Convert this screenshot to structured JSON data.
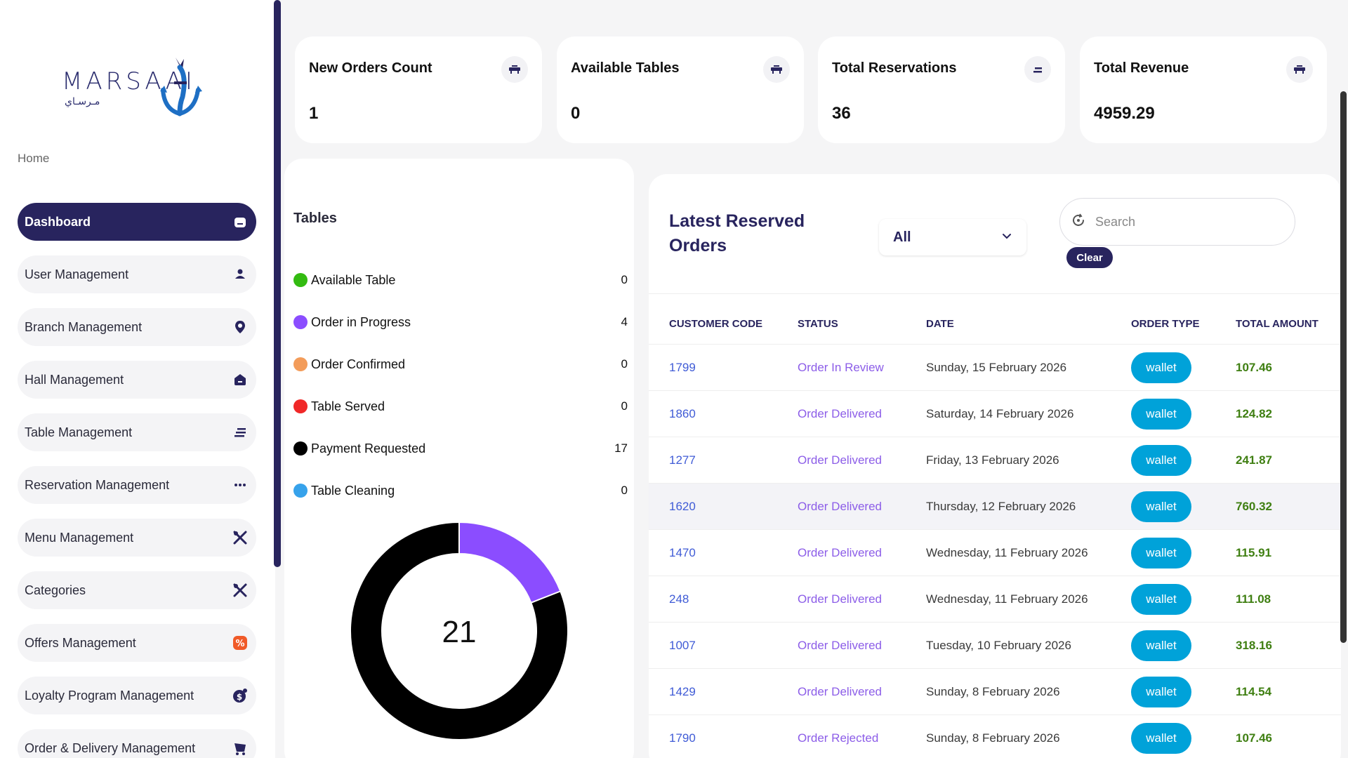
{
  "brand": {
    "name_latin": "MARSAAI",
    "name_arabic": "مـرسـاي",
    "accent": "#28245e"
  },
  "breadcrumb": "Home",
  "sidebar": {
    "items": [
      {
        "label": "Dashboard",
        "icon": "dashboard-icon",
        "active": true
      },
      {
        "label": "User Management",
        "icon": "user-icon"
      },
      {
        "label": "Branch Management",
        "icon": "location-pin-icon"
      },
      {
        "label": "Hall Management",
        "icon": "hall-icon"
      },
      {
        "label": "Table Management",
        "icon": "list-icon"
      },
      {
        "label": "Reservation Management",
        "icon": "more-dots-icon"
      },
      {
        "label": "Menu Management",
        "icon": "cutlery-icon"
      },
      {
        "label": "Categories",
        "icon": "cutlery-icon"
      },
      {
        "label": "Offers Management",
        "icon": "percent-badge-icon"
      },
      {
        "label": "Loyalty Program Management",
        "icon": "loyalty-coin-icon"
      },
      {
        "label": "Order & Delivery Management",
        "icon": "delivery-icon"
      }
    ]
  },
  "stats": [
    {
      "title": "New Orders Count",
      "value": "1",
      "icon": "table-icon"
    },
    {
      "title": "Available Tables",
      "value": "0",
      "icon": "table-icon"
    },
    {
      "title": "Total Reservations",
      "value": "36",
      "icon": "reservation-icon"
    },
    {
      "title": "Total Revenue",
      "value": "4959.29",
      "icon": "table-icon"
    }
  ],
  "tables": {
    "title": "Tables",
    "legend": [
      {
        "label": "Available Table",
        "count": "0",
        "color": "#33bb11"
      },
      {
        "label": "Order in Progress",
        "count": "4",
        "color": "#8b4dff"
      },
      {
        "label": "Order Confirmed",
        "count": "0",
        "color": "#f39c5a"
      },
      {
        "label": "Table Served",
        "count": "0",
        "color": "#f02828"
      },
      {
        "label": "Payment Requested",
        "count": "17",
        "color": "#000000"
      },
      {
        "label": "Table Cleaning",
        "count": "0",
        "color": "#36a2eb"
      }
    ],
    "total": "21"
  },
  "chart_data": {
    "type": "pie",
    "categories": [
      "Available Table",
      "Order in Progress",
      "Order Confirmed",
      "Table Served",
      "Payment Requested",
      "Table Cleaning"
    ],
    "values": [
      0,
      4,
      0,
      0,
      17,
      0
    ],
    "colors": [
      "#33bb11",
      "#8b4dff",
      "#f39c5a",
      "#f02828",
      "#000000",
      "#36a2eb"
    ],
    "center_label": "21"
  },
  "orders": {
    "title": "Latest Reserved Orders",
    "filter_value": "All",
    "search_placeholder": "Search",
    "clear_label": "Clear",
    "columns": [
      "CUSTOMER CODE",
      "STATUS",
      "DATE",
      "ORDER TYPE",
      "TOTAL AMOUNT"
    ],
    "rows": [
      {
        "code": "1799",
        "status": "Order In Review",
        "date": "Sunday, 15 February 2026",
        "type": "wallet",
        "amount": "107.46"
      },
      {
        "code": "1860",
        "status": "Order Delivered",
        "date": "Saturday, 14 February 2026",
        "type": "wallet",
        "amount": "124.82"
      },
      {
        "code": "1277",
        "status": "Order Delivered",
        "date": "Friday, 13 February 2026",
        "type": "wallet",
        "amount": "241.87"
      },
      {
        "code": "1620",
        "status": "Order Delivered",
        "date": "Thursday, 12 February 2026",
        "type": "wallet",
        "amount": "760.32"
      },
      {
        "code": "1470",
        "status": "Order Delivered",
        "date": "Wednesday, 11 February 2026",
        "type": "wallet",
        "amount": "115.91"
      },
      {
        "code": "248",
        "status": "Order Delivered",
        "date": "Wednesday, 11 February 2026",
        "type": "wallet",
        "amount": "111.08"
      },
      {
        "code": "1007",
        "status": "Order Delivered",
        "date": "Tuesday, 10 February 2026",
        "type": "wallet",
        "amount": "318.16"
      },
      {
        "code": "1429",
        "status": "Order Delivered",
        "date": "Sunday, 8 February 2026",
        "type": "wallet",
        "amount": "114.54"
      },
      {
        "code": "1790",
        "status": "Order Rejected",
        "date": "Sunday, 8 February 2026",
        "type": "wallet",
        "amount": "107.46"
      }
    ]
  }
}
